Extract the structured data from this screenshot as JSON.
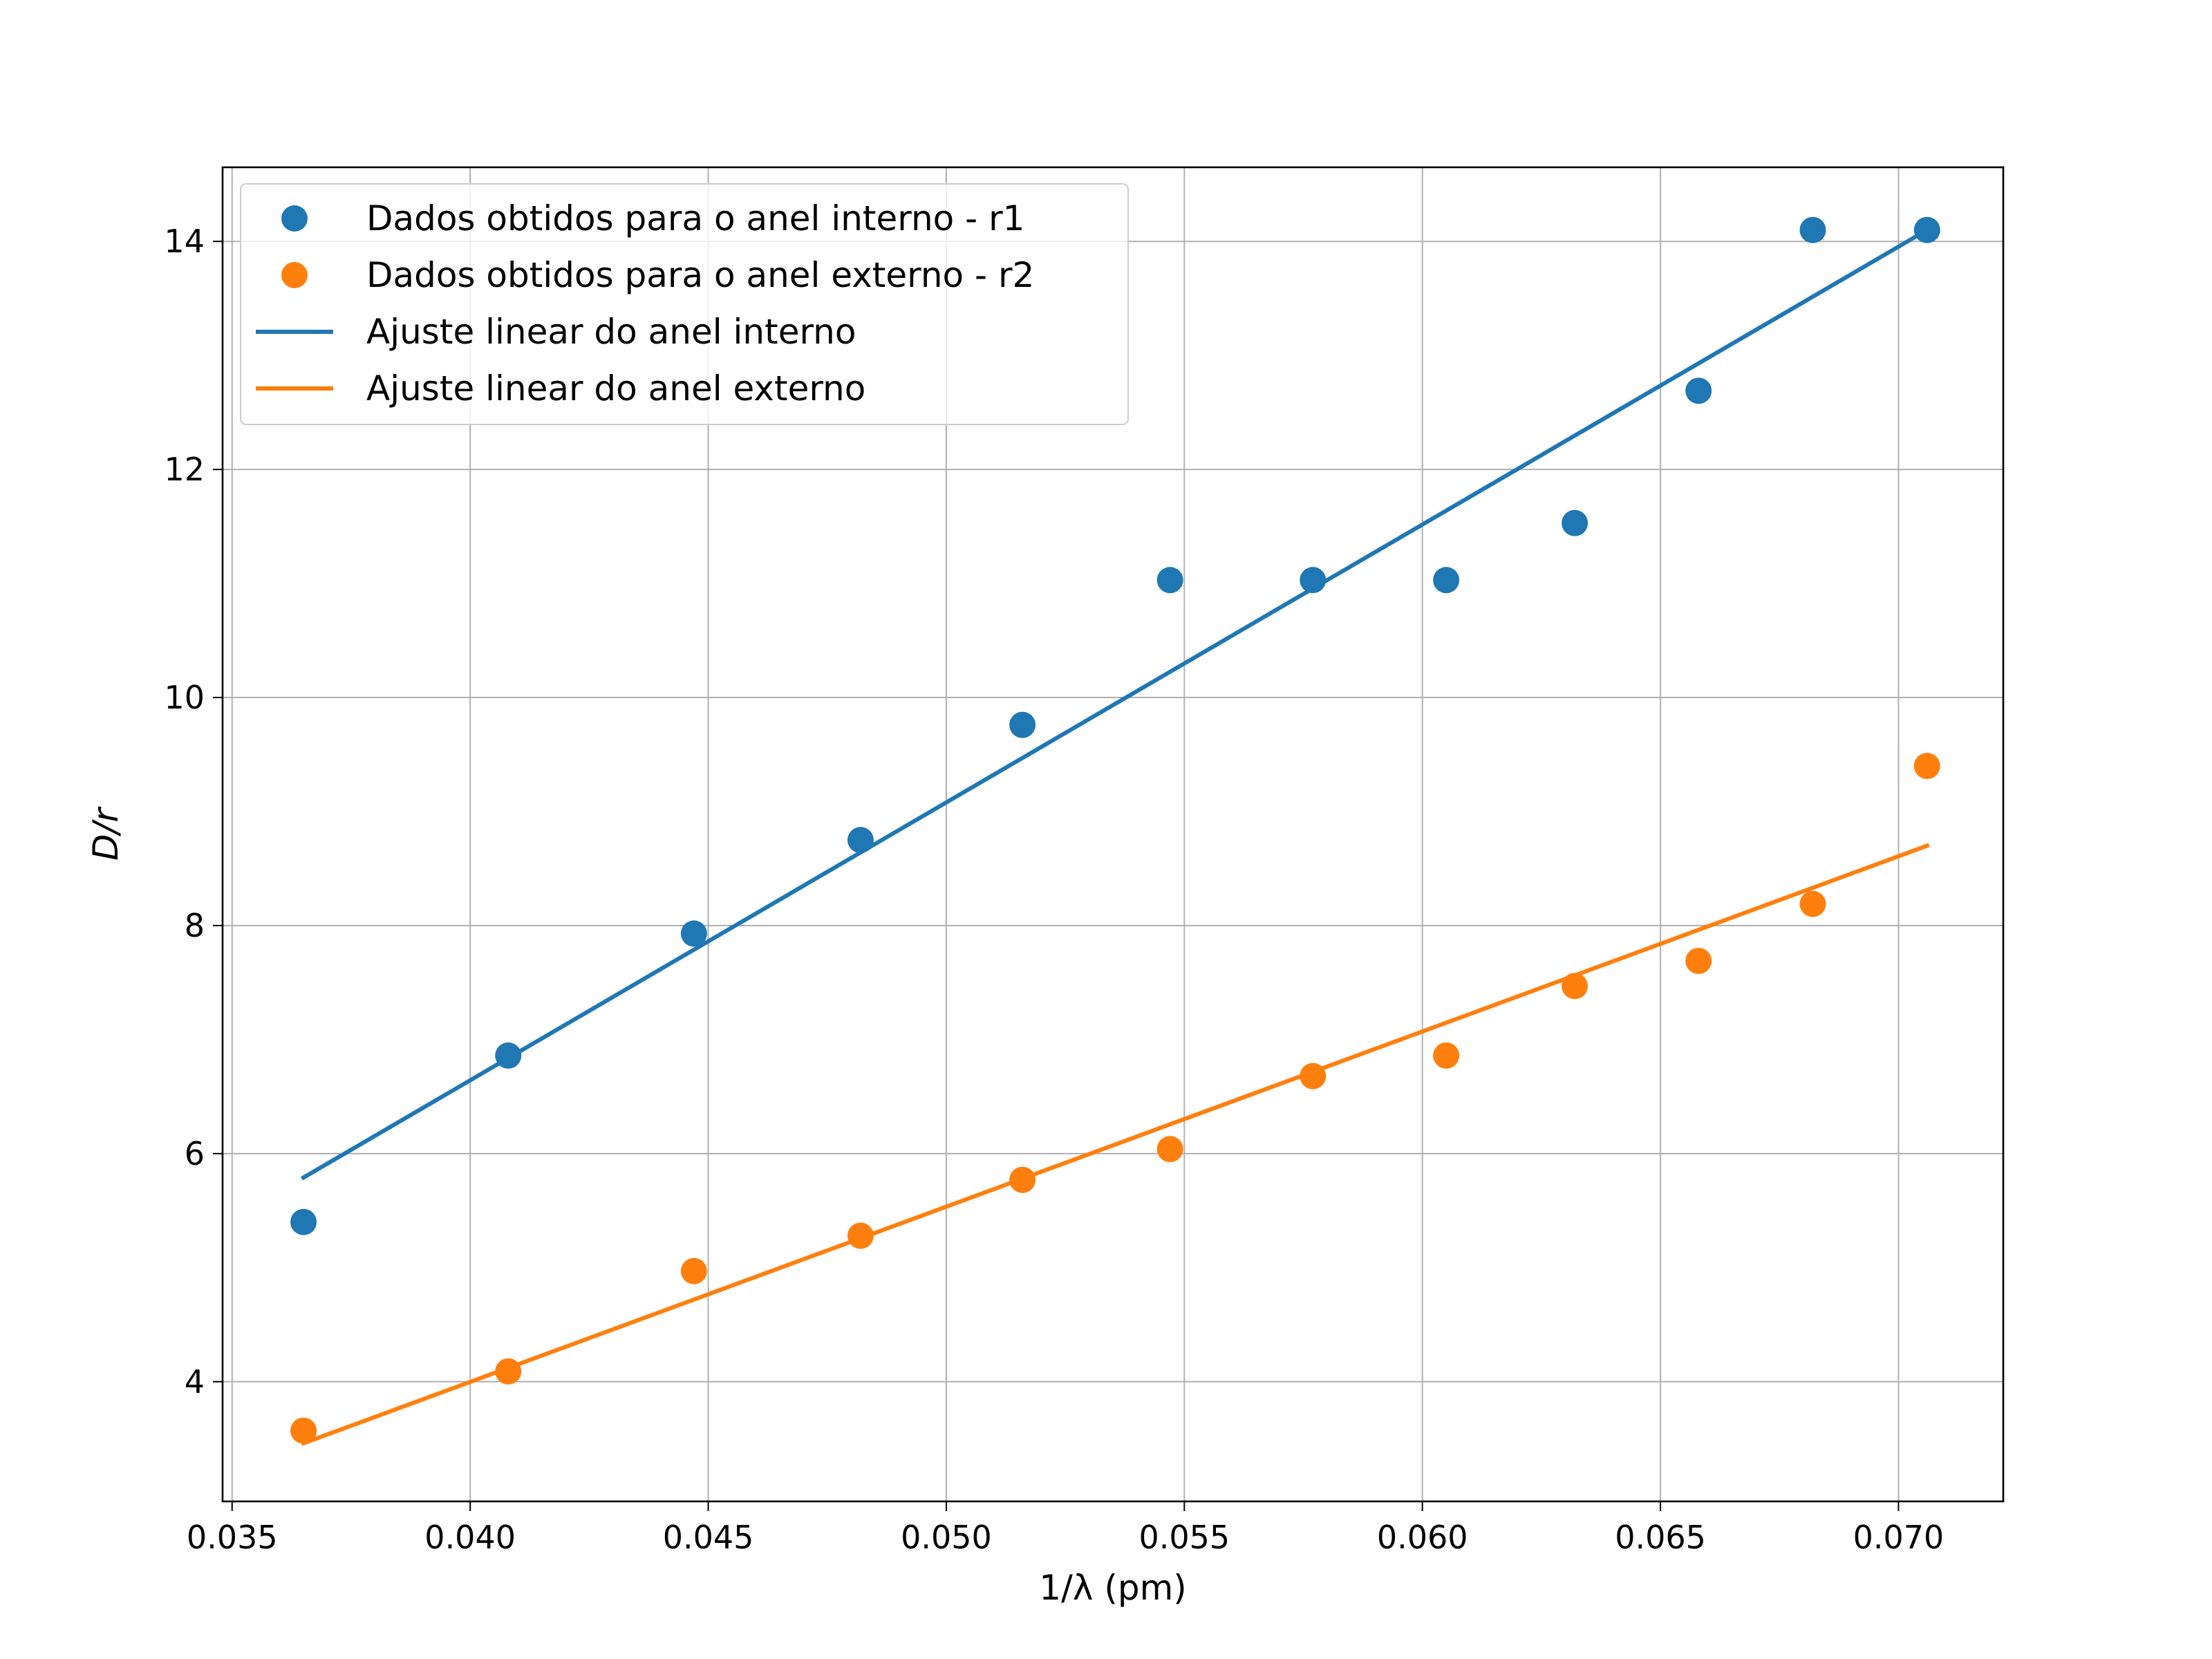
{
  "chart_data": {
    "type": "scatter",
    "title": "",
    "xlabel": "1/λ (pm)",
    "ylabel": "D/r",
    "xlim": [
      0.0348,
      0.0722
    ],
    "ylim": [
      2.95,
      14.65
    ],
    "grid": true,
    "legend_position": "top-left",
    "x_ticks": [
      "0.035",
      "0.040",
      "0.045",
      "0.050",
      "0.055",
      "0.060",
      "0.065",
      "0.070"
    ],
    "y_ticks": [
      "4",
      "6",
      "8",
      "10",
      "12",
      "14"
    ],
    "x": [
      0.0365,
      0.0408,
      0.0447,
      0.0482,
      0.0516,
      0.0547,
      0.0577,
      0.0605,
      0.0632,
      0.0658,
      0.0682,
      0.0706
    ],
    "series": [
      {
        "name": "Dados obtidos para o anel interno - r1",
        "kind": "scatter",
        "color": "#1f77b4",
        "values": [
          5.4,
          6.86,
          7.93,
          8.75,
          9.76,
          11.03,
          11.03,
          11.03,
          11.53,
          12.69,
          14.1,
          14.1
        ]
      },
      {
        "name": "Dados obtidos para o anel externo - r2",
        "kind": "scatter",
        "color": "#ff7f0e",
        "values": [
          3.57,
          4.09,
          4.97,
          5.28,
          5.77,
          6.04,
          6.68,
          6.86,
          7.47,
          7.69,
          8.19,
          9.4
        ]
      },
      {
        "name": "Ajuste linear do anel interno",
        "kind": "line",
        "color": "#1f77b4",
        "x": [
          0.0365,
          0.0706
        ],
        "values": [
          5.79,
          14.1
        ]
      },
      {
        "name": "Ajuste linear do anel externo",
        "kind": "line",
        "color": "#ff7f0e",
        "x": [
          0.0365,
          0.0706
        ],
        "values": [
          3.46,
          8.7
        ]
      }
    ]
  }
}
